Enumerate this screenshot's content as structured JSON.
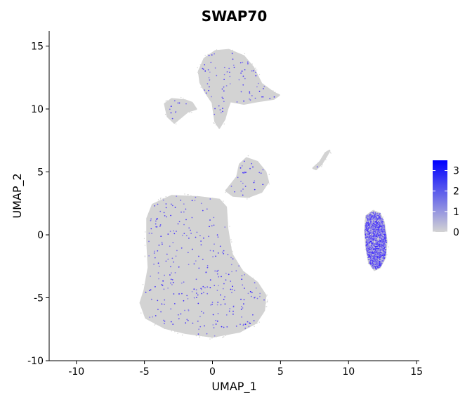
{
  "chart_data": {
    "type": "scatter",
    "title": "SWAP70",
    "xlabel": "UMAP_1",
    "ylabel": "UMAP_2",
    "xlim": [
      -12,
      15.2
    ],
    "ylim": [
      -10,
      16.2
    ],
    "x_ticks": [
      -10,
      -5,
      0,
      5,
      10,
      15
    ],
    "y_ticks": [
      -10,
      -5,
      0,
      5,
      10,
      15
    ],
    "x_tick_labels": [
      "-10",
      "-5",
      "0",
      "5",
      "10",
      "15"
    ],
    "y_tick_labels": [
      "-10",
      "-5",
      "0",
      "5",
      "10",
      "15"
    ],
    "grid": false,
    "legend": {
      "placement": "right",
      "type": "colorbar",
      "range": [
        0,
        3.5
      ],
      "ticks": [
        0,
        1,
        2,
        3
      ],
      "tick_labels": [
        "0",
        "1",
        "2",
        "3"
      ],
      "low_color": "#d3d3d3",
      "high_color": "#0000ff"
    },
    "clusters": [
      {
        "name": "main-cluster",
        "expression": "low",
        "outline": [
          [
            -4.8,
            1.3
          ],
          [
            -4.4,
            2.4
          ],
          [
            -3.0,
            3.1
          ],
          [
            -1.0,
            3.0
          ],
          [
            0.5,
            2.8
          ],
          [
            1.0,
            2.2
          ],
          [
            1.1,
            0.5
          ],
          [
            1.4,
            -1.5
          ],
          [
            2.2,
            -2.9
          ],
          [
            3.3,
            -3.8
          ],
          [
            3.9,
            -4.8
          ],
          [
            3.8,
            -6.0
          ],
          [
            3.2,
            -7.0
          ],
          [
            2.0,
            -7.7
          ],
          [
            0.0,
            -8.1
          ],
          [
            -2.0,
            -7.8
          ],
          [
            -3.5,
            -7.4
          ],
          [
            -4.9,
            -6.6
          ],
          [
            -5.3,
            -5.4
          ],
          [
            -5.0,
            -4.4
          ],
          [
            -4.7,
            -2.6
          ],
          [
            -4.8,
            -0.5
          ]
        ]
      },
      {
        "name": "top-cluster",
        "expression": "low",
        "outline": [
          [
            -0.9,
            12.1
          ],
          [
            -1.0,
            13.0
          ],
          [
            -0.6,
            14.0
          ],
          [
            0.2,
            14.6
          ],
          [
            1.2,
            14.7
          ],
          [
            2.3,
            14.2
          ],
          [
            3.0,
            13.3
          ],
          [
            3.6,
            12.0
          ],
          [
            4.5,
            11.3
          ],
          [
            4.9,
            11.1
          ],
          [
            4.5,
            10.8
          ],
          [
            3.3,
            10.6
          ],
          [
            2.3,
            10.4
          ],
          [
            1.3,
            10.6
          ],
          [
            1.1,
            10.0
          ],
          [
            0.9,
            9.2
          ],
          [
            0.5,
            8.5
          ],
          [
            0.2,
            9.0
          ],
          [
            0.0,
            10.5
          ],
          [
            -0.5,
            11.3
          ]
        ]
      },
      {
        "name": "top-left-cluster",
        "expression": "low",
        "outline": [
          [
            -3.5,
            10.4
          ],
          [
            -3.0,
            10.8
          ],
          [
            -2.0,
            10.7
          ],
          [
            -1.5,
            10.5
          ],
          [
            -1.2,
            10.0
          ],
          [
            -1.8,
            9.8
          ],
          [
            -2.8,
            8.9
          ],
          [
            -3.3,
            9.4
          ]
        ]
      },
      {
        "name": "mid-cluster",
        "expression": "low",
        "outline": [
          [
            1.0,
            3.5
          ],
          [
            1.8,
            4.6
          ],
          [
            2.0,
            5.6
          ],
          [
            2.5,
            6.1
          ],
          [
            3.3,
            5.8
          ],
          [
            3.9,
            5.0
          ],
          [
            4.1,
            4.2
          ],
          [
            3.6,
            3.4
          ],
          [
            2.6,
            3.0
          ],
          [
            1.5,
            3.1
          ]
        ]
      },
      {
        "name": "right-cluster",
        "expression": "high",
        "outline": [
          [
            11.3,
            1.5
          ],
          [
            11.8,
            1.9
          ],
          [
            12.3,
            1.7
          ],
          [
            12.6,
            1.0
          ],
          [
            12.8,
            -0.5
          ],
          [
            12.7,
            -1.8
          ],
          [
            12.3,
            -2.6
          ],
          [
            11.9,
            -2.8
          ],
          [
            11.5,
            -2.2
          ],
          [
            11.3,
            -1.0
          ],
          [
            11.2,
            0.3
          ]
        ]
      },
      {
        "name": "small-right-cluster",
        "expression": "low",
        "outline": [
          [
            7.4,
            5.3
          ],
          [
            7.9,
            5.8
          ],
          [
            8.3,
            6.5
          ],
          [
            8.6,
            6.7
          ],
          [
            8.4,
            6.3
          ],
          [
            8.0,
            5.6
          ],
          [
            7.6,
            5.2
          ]
        ]
      }
    ]
  }
}
